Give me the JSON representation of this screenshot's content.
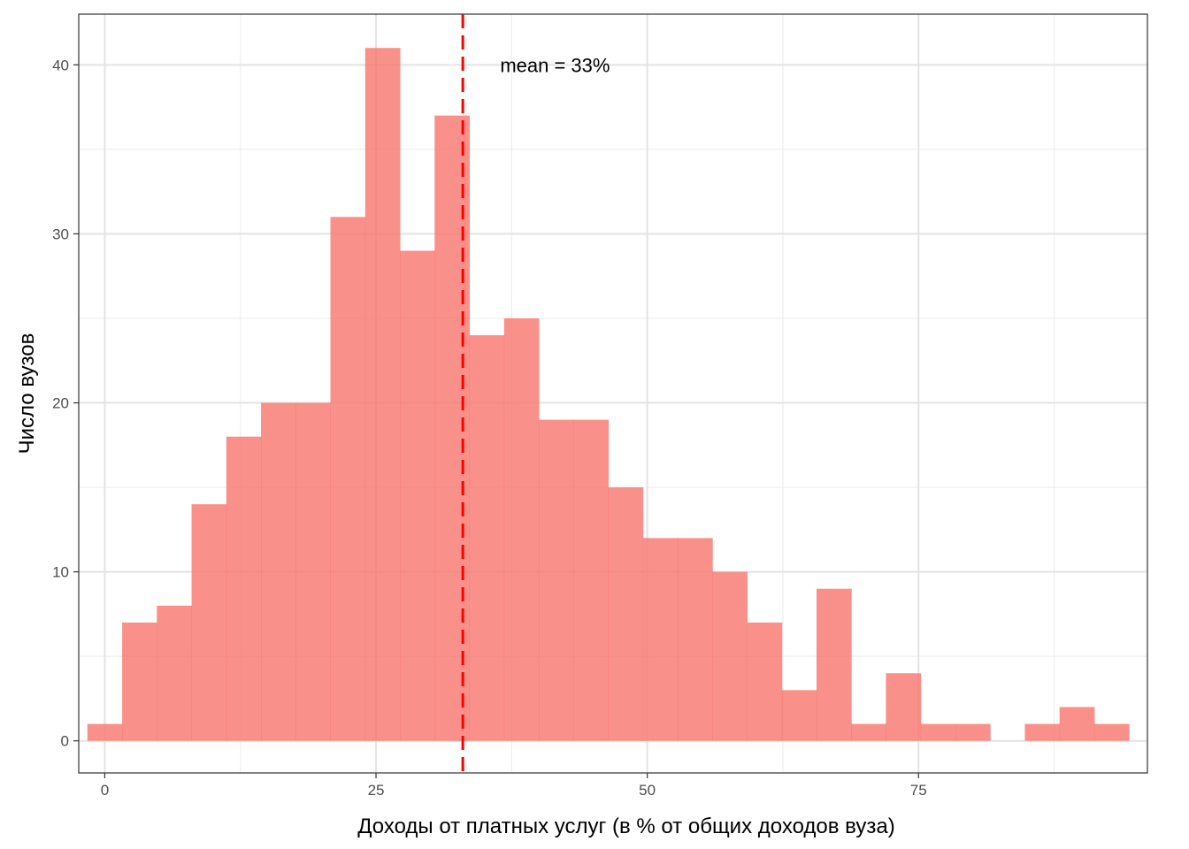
{
  "chart_data": {
    "type": "bar",
    "title": "",
    "xlabel": "Доходы от платных услуг (в % от общих доходов вуза)",
    "ylabel": "Число вузов",
    "xlim": [
      -2.4,
      96.1
    ],
    "ylim": [
      -1.9,
      43.0
    ],
    "x_ticks": [
      0,
      25,
      50,
      75
    ],
    "y_ticks": [
      0,
      10,
      20,
      30,
      40
    ],
    "x_minor": [
      12.5,
      37.5,
      62.5,
      87.5
    ],
    "y_minor": [
      5,
      15,
      25,
      35
    ],
    "grid": true,
    "bins": [
      {
        "x0": -1.6,
        "x1": 1.6,
        "count": 1
      },
      {
        "x0": 1.6,
        "x1": 4.8,
        "count": 7
      },
      {
        "x0": 4.8,
        "x1": 8.0,
        "count": 8
      },
      {
        "x0": 8.0,
        "x1": 11.2,
        "count": 14
      },
      {
        "x0": 11.2,
        "x1": 14.4,
        "count": 18
      },
      {
        "x0": 14.4,
        "x1": 17.6,
        "count": 20
      },
      {
        "x0": 17.6,
        "x1": 20.8,
        "count": 20
      },
      {
        "x0": 20.8,
        "x1": 24.0,
        "count": 31
      },
      {
        "x0": 24.0,
        "x1": 27.2,
        "count": 41
      },
      {
        "x0": 27.2,
        "x1": 30.4,
        "count": 29
      },
      {
        "x0": 30.4,
        "x1": 33.6,
        "count": 37
      },
      {
        "x0": 33.6,
        "x1": 36.8,
        "count": 24
      },
      {
        "x0": 36.8,
        "x1": 40.0,
        "count": 25
      },
      {
        "x0": 40.0,
        "x1": 43.2,
        "count": 19
      },
      {
        "x0": 43.2,
        "x1": 46.4,
        "count": 19
      },
      {
        "x0": 46.4,
        "x1": 49.6,
        "count": 15
      },
      {
        "x0": 49.6,
        "x1": 52.8,
        "count": 12
      },
      {
        "x0": 52.8,
        "x1": 56.0,
        "count": 12
      },
      {
        "x0": 56.0,
        "x1": 59.2,
        "count": 10
      },
      {
        "x0": 59.2,
        "x1": 62.4,
        "count": 7
      },
      {
        "x0": 62.4,
        "x1": 65.6,
        "count": 3
      },
      {
        "x0": 65.6,
        "x1": 68.8,
        "count": 9
      },
      {
        "x0": 68.8,
        "x1": 72.0,
        "count": 1
      },
      {
        "x0": 72.0,
        "x1": 75.2,
        "count": 4
      },
      {
        "x0": 75.2,
        "x1": 78.4,
        "count": 1
      },
      {
        "x0": 78.4,
        "x1": 81.6,
        "count": 1
      },
      {
        "x0": 81.6,
        "x1": 84.8,
        "count": 0
      },
      {
        "x0": 84.8,
        "x1": 88.0,
        "count": 1
      },
      {
        "x0": 88.0,
        "x1": 91.2,
        "count": 2
      },
      {
        "x0": 91.2,
        "x1": 94.4,
        "count": 1
      }
    ],
    "bar_color": "#F8766D",
    "mean_line": {
      "x": 33.0,
      "color": "#FF0000",
      "style": "dashed"
    },
    "annotation": {
      "text": "mean = 33%",
      "x": 41.5,
      "y": 40
    }
  }
}
